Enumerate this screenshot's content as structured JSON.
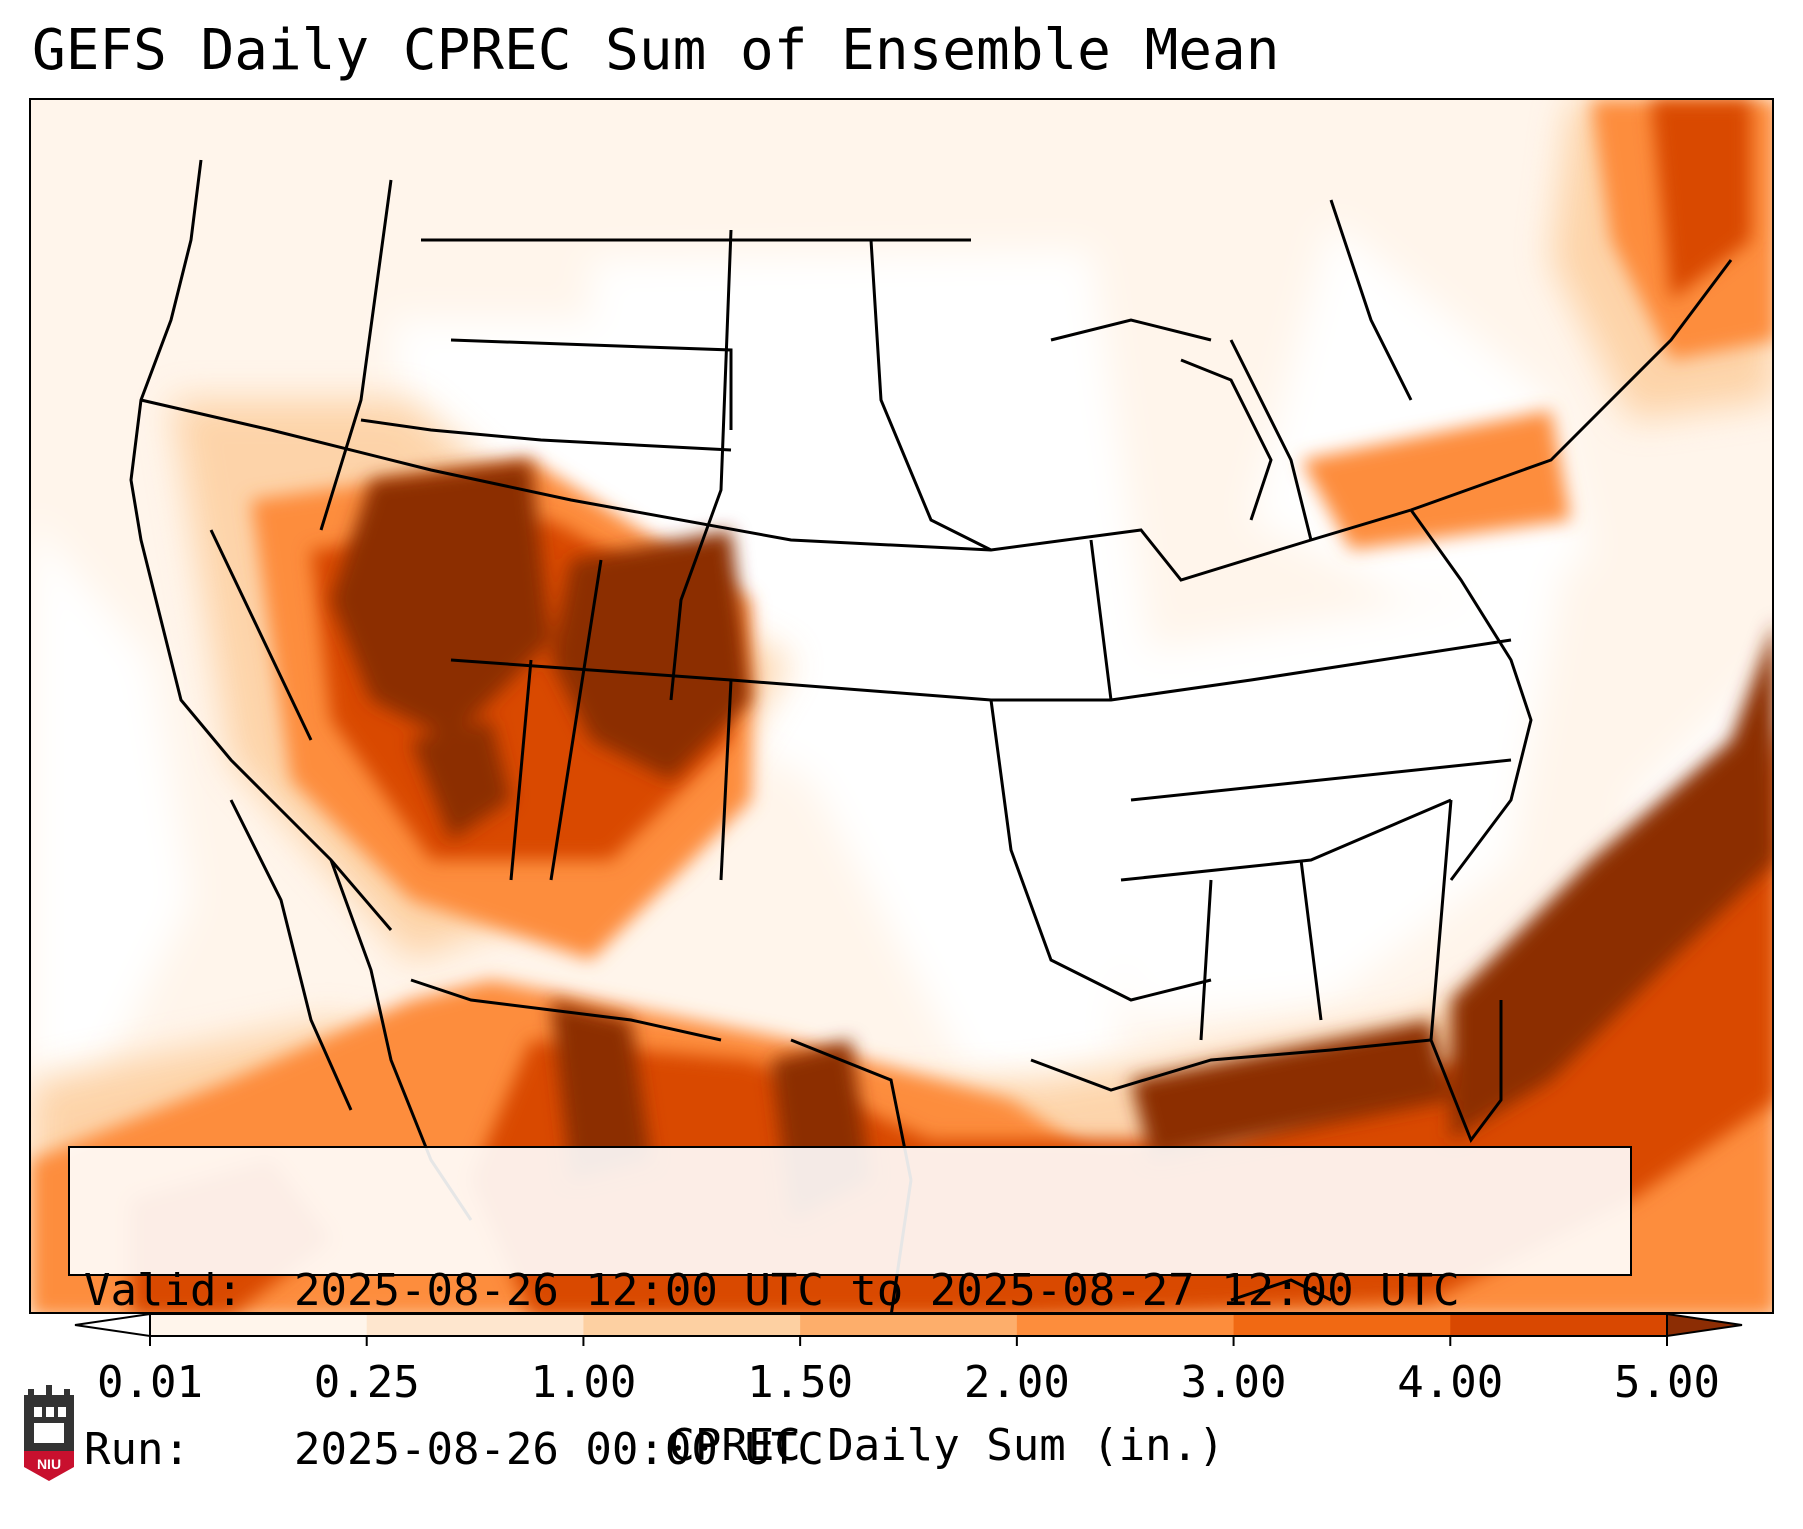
{
  "title": "GEFS Daily CPREC Sum of Ensemble Mean",
  "info": {
    "valid_key": "Valid:",
    "valid_value": "2025-08-26 12:00 UTC to 2025-08-27 12:00 UTC",
    "run_key": "Run:",
    "run_value": "2025-08-26 00:00 UTC"
  },
  "colorbar": {
    "label": "CPREC Daily Sum (in.)",
    "ticks": [
      "0.01",
      "0.25",
      "1.00",
      "1.50",
      "2.00",
      "3.00",
      "4.00",
      "5.00"
    ],
    "colors": [
      "#fff5eb",
      "#fee6ce",
      "#fdd0a2",
      "#fdae6b",
      "#fd8d3c",
      "#f16913",
      "#d94801",
      "#8c2d04"
    ],
    "extend": "both"
  },
  "logo": {
    "text": "NIU",
    "icon": "niu-logo-icon"
  }
}
